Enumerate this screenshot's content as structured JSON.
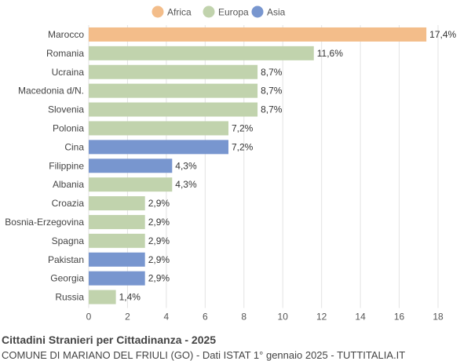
{
  "chart_data": {
    "type": "bar",
    "orientation": "horizontal",
    "title": "Cittadini Stranieri per Cittadinanza - 2025",
    "subtitle": "COMUNE DI MARIANO DEL FRIULI (GO) - Dati ISTAT 1° gennaio 2025 - TUTTITALIA.IT",
    "xlim": [
      0,
      18
    ],
    "xticks": [
      0,
      2,
      4,
      6,
      8,
      10,
      12,
      14,
      16,
      18
    ],
    "grid": true,
    "legend_position": "top-center",
    "legend": [
      {
        "name": "Africa",
        "color": "#f3bd8a"
      },
      {
        "name": "Europa",
        "color": "#c1d3ad"
      },
      {
        "name": "Asia",
        "color": "#7896cf"
      }
    ],
    "categories": [
      "Marocco",
      "Romania",
      "Ucraina",
      "Macedonia d/N.",
      "Slovenia",
      "Polonia",
      "Cina",
      "Filippine",
      "Albania",
      "Croazia",
      "Bosnia-Erzegovina",
      "Spagna",
      "Pakistan",
      "Georgia",
      "Russia"
    ],
    "values": [
      17.4,
      11.6,
      8.7,
      8.7,
      8.7,
      7.2,
      7.2,
      4.3,
      4.3,
      2.9,
      2.9,
      2.9,
      2.9,
      2.9,
      1.4
    ],
    "value_labels": [
      "17,4%",
      "11,6%",
      "8,7%",
      "8,7%",
      "8,7%",
      "7,2%",
      "7,2%",
      "4,3%",
      "4,3%",
      "2,9%",
      "2,9%",
      "2,9%",
      "2,9%",
      "2,9%",
      "1,4%"
    ],
    "groups": [
      "Africa",
      "Europa",
      "Europa",
      "Europa",
      "Europa",
      "Europa",
      "Asia",
      "Asia",
      "Europa",
      "Europa",
      "Europa",
      "Europa",
      "Asia",
      "Asia",
      "Europa"
    ]
  }
}
